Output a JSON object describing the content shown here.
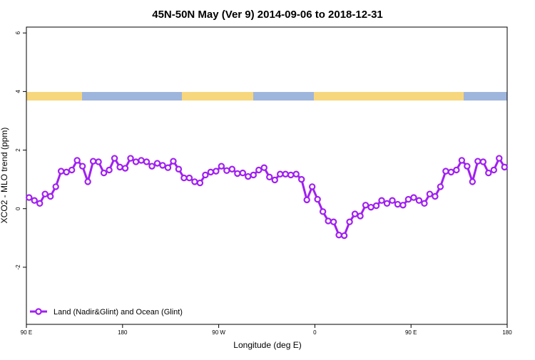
{
  "chart_data": {
    "type": "line",
    "title": "45N-50N May (Ver 9)   2014-09-06 to 2018-12-31",
    "x_label": "Longitude (deg E)",
    "y_label": "XCO2 - MLO trend (ppm)",
    "x": [
      92.5,
      97.5,
      102.5,
      107.5,
      112.5,
      117.5,
      122.5,
      127.5,
      132.5,
      137.5,
      142.5,
      147.5,
      152.5,
      157.5,
      162.5,
      167.5,
      172.5,
      177.5,
      182.5,
      187.5,
      192.5,
      197.5,
      202.5,
      207.5,
      212.5,
      217.5,
      222.5,
      227.5,
      232.5,
      237.5,
      242.5,
      247.5,
      252.5,
      257.5,
      262.5,
      267.5,
      272.5,
      277.5,
      282.5,
      287.5,
      292.5,
      297.5,
      302.5,
      307.5,
      312.5,
      317.5,
      322.5,
      327.5,
      332.5,
      337.5,
      342.5,
      347.5,
      352.5,
      357.5,
      362.5,
      367.5,
      372.5,
      377.5,
      382.5,
      387.5,
      392.5,
      397.5,
      402.5,
      407.5,
      412.5,
      417.5,
      422.5,
      427.5,
      432.5,
      437.5,
      442.5,
      447.5,
      452.5,
      457.5,
      462.5,
      467.5,
      472.5,
      477.5,
      482.5,
      487.5,
      492.5,
      497.5,
      502.5,
      507.5,
      512.5,
      517.5,
      522.5,
      527.5,
      532.5,
      537.5
    ],
    "series": [
      {
        "name": "Land (Nadir&Glint) and Ocean (Glint)",
        "color": "#a020f0",
        "values": [
          0.38,
          0.28,
          0.18,
          0.5,
          0.42,
          0.75,
          1.28,
          1.25,
          1.32,
          1.65,
          1.45,
          0.92,
          1.62,
          1.6,
          1.22,
          1.32,
          1.72,
          1.42,
          1.38,
          1.72,
          1.6,
          1.65,
          1.6,
          1.45,
          1.55,
          1.48,
          1.4,
          1.62,
          1.35,
          1.05,
          1.05,
          0.92,
          0.88,
          1.15,
          1.25,
          1.28,
          1.45,
          1.3,
          1.35,
          1.2,
          1.22,
          1.1,
          1.15,
          1.32,
          1.4,
          1.08,
          0.98,
          1.18,
          1.18,
          1.15,
          1.18,
          1.0,
          0.3,
          0.75,
          0.32,
          -0.1,
          -0.42,
          -0.45,
          -0.9,
          -0.92,
          -0.45,
          -0.18,
          -0.25,
          0.12,
          0.05,
          0.1,
          0.28,
          0.18,
          0.28,
          0.15,
          0.12,
          0.32,
          0.38,
          0.28,
          0.18,
          0.5,
          0.42,
          0.75,
          1.28,
          1.25,
          1.32,
          1.65,
          1.45,
          0.92,
          1.62,
          1.6,
          1.22,
          1.32,
          1.72,
          1.42
        ]
      }
    ],
    "xlim": [
      90,
      540
    ],
    "xticks": [
      {
        "value": 90,
        "label": "90 E"
      },
      180,
      {
        "value": 270,
        "label": "90 W"
      },
      0,
      {
        "value": 450,
        "label": "90 E"
      },
      {
        "value": 540,
        "label": "180"
      }
    ],
    "ylim": [
      -3.95,
      6.2
    ],
    "yticks": [
      -2,
      0,
      2,
      4,
      6
    ],
    "legend": "bottom-left"
  }
}
